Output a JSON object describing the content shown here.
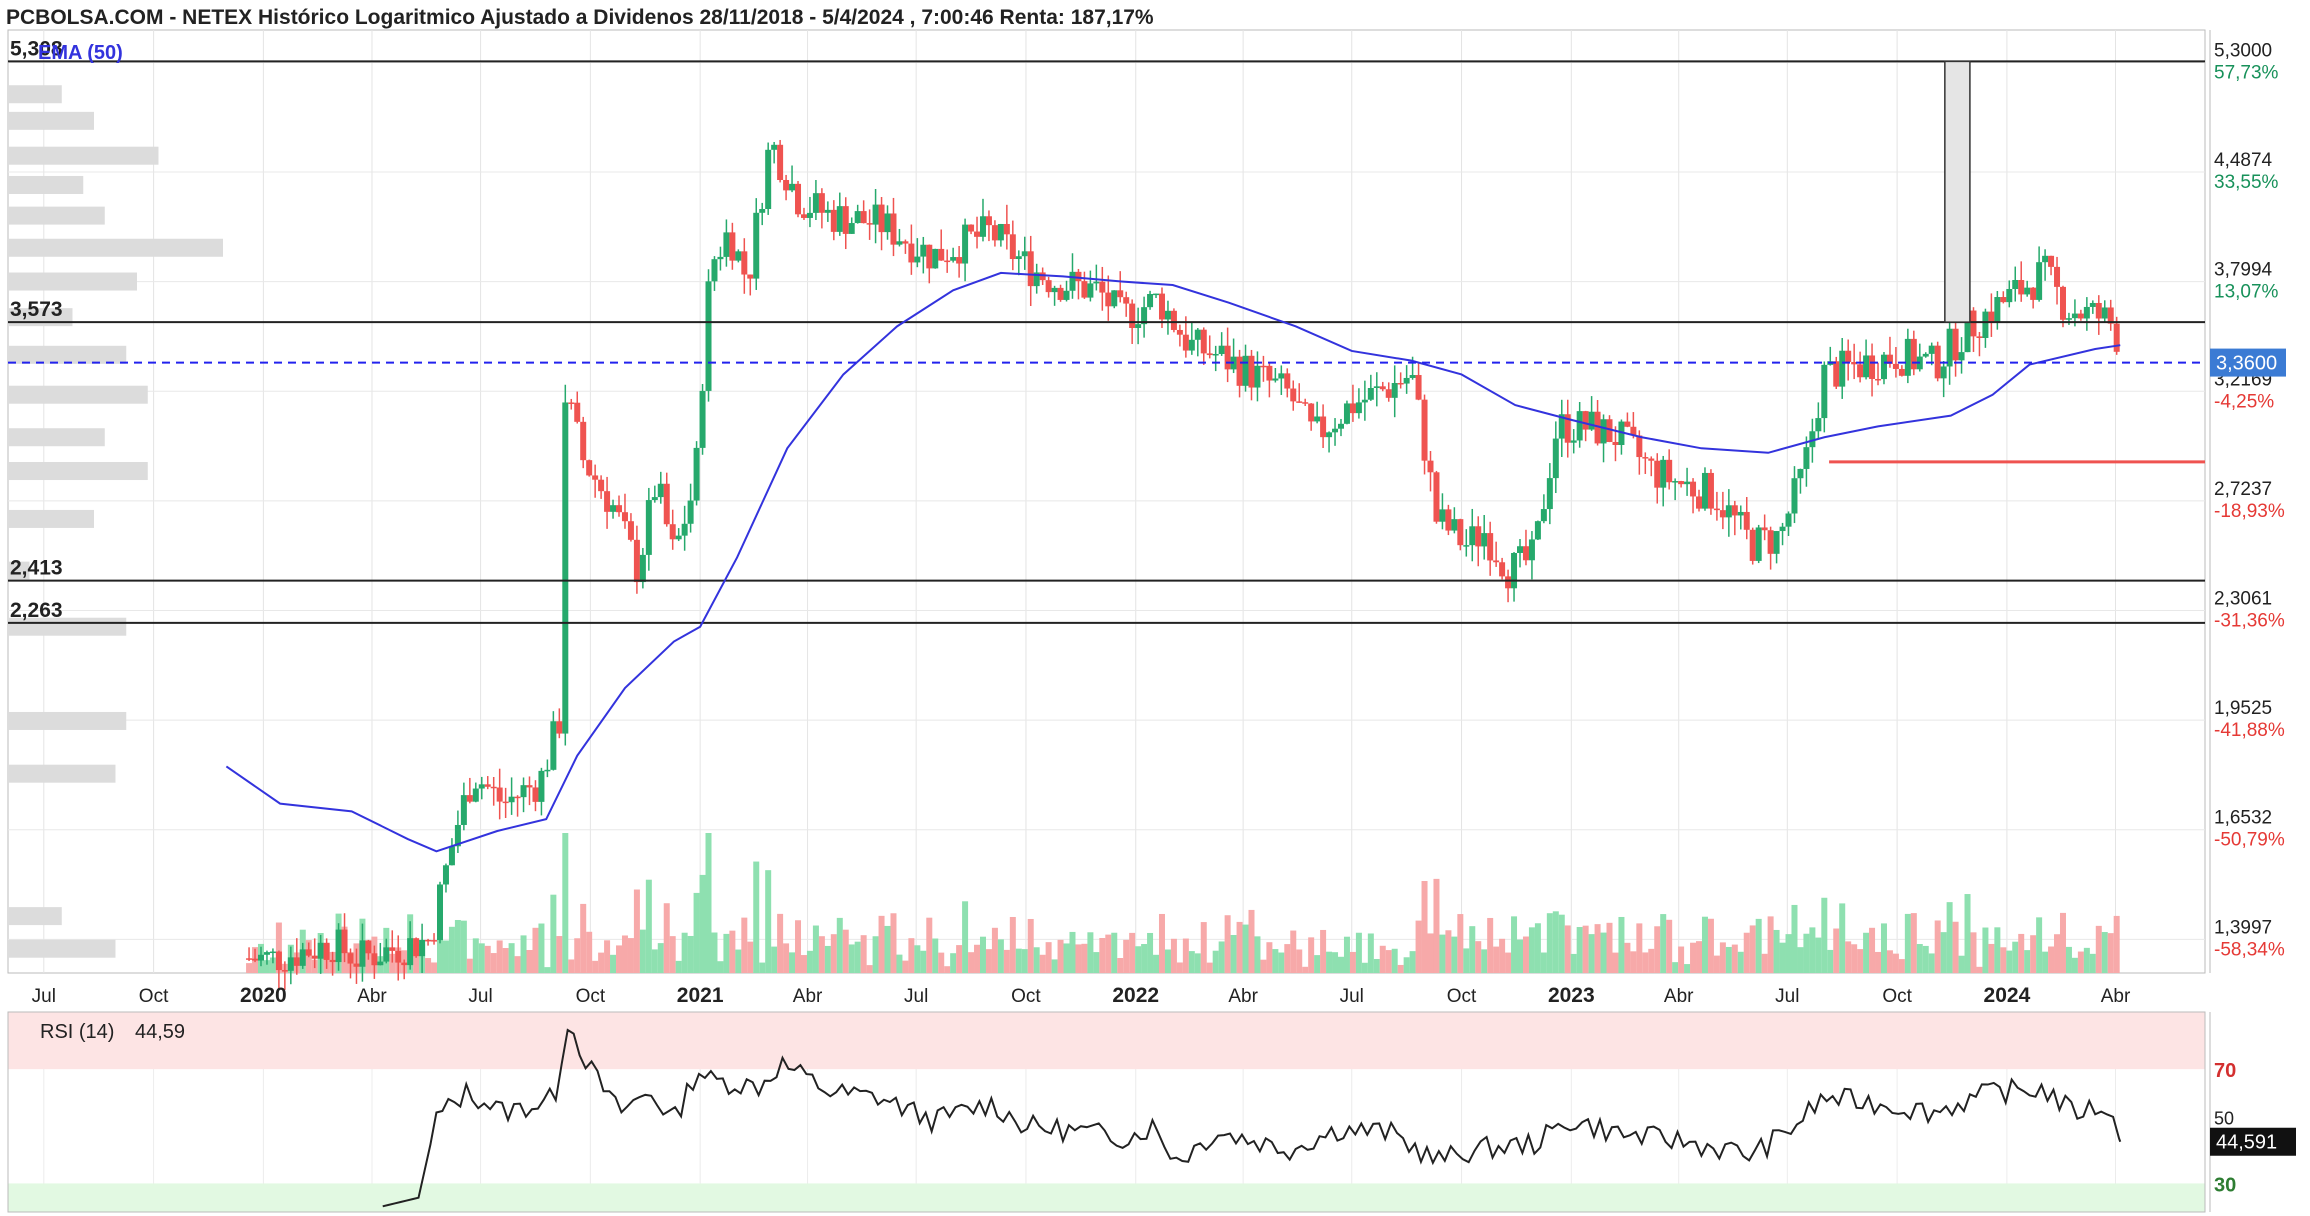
{
  "title": "PCBOLSA.COM - NETEX Histórico Logaritmico Ajustado a Dividenos 28/11/2018 - 5/4/2024 , 7:00:46 Renta: 187,17%",
  "colors": {
    "up": "#26a96c",
    "down": "#ef5350",
    "up_vol": "#8ee0b0",
    "down_vol": "#f7a9a9",
    "ema": "#3333dd",
    "last_price_line": "#2222ee",
    "last_price_badge": "#3b7bd4",
    "pct_pos": "#17915a",
    "pct_neg": "#e53935",
    "rsi_zone_high": "#fde4e4",
    "rsi_zone_low": "#e2f9e2",
    "rsi_line": "#222222"
  },
  "ema_legend": "EMA (50)",
  "rsi_legend": {
    "label": "RSI (14)",
    "value": "44,59"
  },
  "rsi_axis": {
    "high": "70",
    "mid": "50",
    "low": "30",
    "current": "44,591"
  },
  "levels": [
    {
      "label": "5,308",
      "price": 5.308
    },
    {
      "label": "3,573",
      "price": 3.573
    },
    {
      "label": "2,413",
      "price": 2.413
    },
    {
      "label": "2,263",
      "price": 2.263
    }
  ],
  "right_axis": [
    {
      "value": "5,3000",
      "pct": "57,73%",
      "price": 5.3,
      "sign": "pos"
    },
    {
      "value": "4,4874",
      "pct": "33,55%",
      "price": 4.4874,
      "sign": "pos"
    },
    {
      "value": "3,7994",
      "pct": "13,07%",
      "price": 3.7994,
      "sign": "pos"
    },
    {
      "value": "3,2169",
      "pct": "-4,25%",
      "price": 3.2169,
      "sign": "neg"
    },
    {
      "value": "2,7237",
      "pct": "-18,93%",
      "price": 2.7237,
      "sign": "neg"
    },
    {
      "value": "2,3061",
      "pct": "-31,36%",
      "price": 2.3061,
      "sign": "neg"
    },
    {
      "value": "1,9525",
      "pct": "-41,88%",
      "price": 1.9525,
      "sign": "neg"
    },
    {
      "value": "1,6532",
      "pct": "-50,79%",
      "price": 1.6532,
      "sign": "neg"
    },
    {
      "value": "1,3997",
      "pct": "-58,34%",
      "price": 1.3997,
      "sign": "neg"
    }
  ],
  "last_price": {
    "label": "3,3600",
    "price": 3.36
  },
  "red_support_price": 2.89,
  "x_ticks": [
    {
      "label": "Jul",
      "date": "2019-07-01",
      "year": false
    },
    {
      "label": "Oct",
      "date": "2019-10-01",
      "year": false
    },
    {
      "label": "2020",
      "date": "2020-01-01",
      "year": true
    },
    {
      "label": "Abr",
      "date": "2020-04-01",
      "year": false
    },
    {
      "label": "Jul",
      "date": "2020-07-01",
      "year": false
    },
    {
      "label": "Oct",
      "date": "2020-10-01",
      "year": false
    },
    {
      "label": "2021",
      "date": "2021-01-01",
      "year": true
    },
    {
      "label": "Abr",
      "date": "2021-04-01",
      "year": false
    },
    {
      "label": "Jul",
      "date": "2021-07-01",
      "year": false
    },
    {
      "label": "Oct",
      "date": "2021-10-01",
      "year": false
    },
    {
      "label": "2022",
      "date": "2022-01-01",
      "year": true
    },
    {
      "label": "Abr",
      "date": "2022-04-01",
      "year": false
    },
    {
      "label": "Jul",
      "date": "2022-07-01",
      "year": false
    },
    {
      "label": "Oct",
      "date": "2022-10-01",
      "year": false
    },
    {
      "label": "2023",
      "date": "2023-01-01",
      "year": true
    },
    {
      "label": "Abr",
      "date": "2023-04-01",
      "year": false
    },
    {
      "label": "Jul",
      "date": "2023-07-01",
      "year": false
    },
    {
      "label": "Oct",
      "date": "2023-10-01",
      "year": false
    },
    {
      "label": "2024",
      "date": "2024-01-01",
      "year": true
    },
    {
      "label": "Abr",
      "date": "2024-04-01",
      "year": false
    }
  ],
  "chart_data": {
    "type": "candlestick",
    "title": "PCBOLSA.COM - NETEX Histórico Logaritmico Ajustado a Dividenos 28/11/2018 - 5/4/2024 , 7:00:46 Renta: 187,17%",
    "y_scale": "log",
    "ylim": [
      1.33,
      5.5
    ],
    "xlim": [
      "2019-06-01",
      "2024-06-15"
    ],
    "price_anchors": [
      [
        "2019-12-20",
        1.36
      ],
      [
        "2020-01-10",
        1.36
      ],
      [
        "2020-02-28",
        1.39
      ],
      [
        "2020-03-20",
        1.36
      ],
      [
        "2020-05-20",
        1.4
      ],
      [
        "2020-06-10",
        1.65
      ],
      [
        "2020-06-25",
        1.8
      ],
      [
        "2020-07-20",
        1.72
      ],
      [
        "2020-08-20",
        1.78
      ],
      [
        "2020-09-05",
        1.95
      ],
      [
        "2020-09-10",
        3.2
      ],
      [
        "2020-09-25",
        2.9
      ],
      [
        "2020-10-20",
        2.7
      ],
      [
        "2020-11-10",
        2.45
      ],
      [
        "2020-11-25",
        2.8
      ],
      [
        "2020-12-10",
        2.5
      ],
      [
        "2020-12-28",
        2.8
      ],
      [
        "2021-01-10",
        3.9
      ],
      [
        "2021-01-25",
        4.1
      ],
      [
        "2021-02-10",
        3.8
      ],
      [
        "2021-03-01",
        4.7
      ],
      [
        "2021-03-25",
        4.3
      ],
      [
        "2021-04-20",
        4.2
      ],
      [
        "2021-06-01",
        4.15
      ],
      [
        "2021-07-15",
        3.95
      ],
      [
        "2021-09-01",
        4.1
      ],
      [
        "2021-09-30",
        3.9
      ],
      [
        "2021-10-25",
        3.8
      ],
      [
        "2021-11-30",
        3.75
      ],
      [
        "2021-12-20",
        3.6
      ],
      [
        "2022-01-20",
        3.7
      ],
      [
        "2022-02-15",
        3.45
      ],
      [
        "2022-03-10",
        3.4
      ],
      [
        "2022-04-10",
        3.3
      ],
      [
        "2022-05-10",
        3.2
      ],
      [
        "2022-05-30",
        3.0
      ],
      [
        "2022-06-30",
        3.15
      ],
      [
        "2022-07-20",
        3.2
      ],
      [
        "2022-08-20",
        3.3
      ],
      [
        "2022-09-10",
        2.65
      ],
      [
        "2022-10-05",
        2.55
      ],
      [
        "2022-10-20",
        2.6
      ],
      [
        "2022-11-10",
        2.45
      ],
      [
        "2022-12-01",
        2.5
      ],
      [
        "2022-12-20",
        3.05
      ],
      [
        "2023-01-15",
        3.05
      ],
      [
        "2023-02-10",
        3.0
      ],
      [
        "2023-03-10",
        2.85
      ],
      [
        "2023-04-01",
        2.8
      ],
      [
        "2023-05-01",
        2.75
      ],
      [
        "2023-06-01",
        2.55
      ],
      [
        "2023-06-25",
        2.58
      ],
      [
        "2023-07-15",
        2.85
      ],
      [
        "2023-08-01",
        3.3
      ],
      [
        "2023-09-01",
        3.35
      ],
      [
        "2023-10-01",
        3.4
      ],
      [
        "2023-11-01",
        3.35
      ],
      [
        "2023-12-01",
        3.55
      ],
      [
        "2024-01-01",
        3.7
      ],
      [
        "2024-02-01",
        3.85
      ],
      [
        "2024-02-20",
        3.65
      ],
      [
        "2024-03-20",
        3.6
      ],
      [
        "2024-04-01",
        3.55
      ],
      [
        "2024-04-05",
        3.36
      ]
    ],
    "ema_50": [
      [
        "2019-12-01",
        1.82
      ],
      [
        "2020-01-15",
        1.72
      ],
      [
        "2020-03-15",
        1.7
      ],
      [
        "2020-05-01",
        1.63
      ],
      [
        "2020-05-25",
        1.6
      ],
      [
        "2020-07-15",
        1.65
      ],
      [
        "2020-08-25",
        1.68
      ],
      [
        "2020-09-20",
        1.85
      ],
      [
        "2020-10-30",
        2.05
      ],
      [
        "2020-12-10",
        2.2
      ],
      [
        "2021-01-01",
        2.25
      ],
      [
        "2021-02-01",
        2.5
      ],
      [
        "2021-03-15",
        2.95
      ],
      [
        "2021-05-01",
        3.3
      ],
      [
        "2021-06-15",
        3.55
      ],
      [
        "2021-08-01",
        3.75
      ],
      [
        "2021-09-10",
        3.85
      ],
      [
        "2021-11-01",
        3.83
      ],
      [
        "2021-12-20",
        3.8
      ],
      [
        "2022-02-01",
        3.78
      ],
      [
        "2022-03-20",
        3.68
      ],
      [
        "2022-05-15",
        3.55
      ],
      [
        "2022-07-01",
        3.42
      ],
      [
        "2022-08-20",
        3.37
      ],
      [
        "2022-10-01",
        3.3
      ],
      [
        "2022-11-15",
        3.15
      ],
      [
        "2023-01-01",
        3.08
      ],
      [
        "2023-03-01",
        3.0
      ],
      [
        "2023-04-20",
        2.95
      ],
      [
        "2023-06-15",
        2.93
      ],
      [
        "2023-08-01",
        3.0
      ],
      [
        "2023-09-15",
        3.05
      ],
      [
        "2023-11-15",
        3.1
      ],
      [
        "2023-12-20",
        3.2
      ],
      [
        "2024-01-20",
        3.35
      ],
      [
        "2024-03-15",
        3.43
      ],
      [
        "2024-04-05",
        3.45
      ]
    ],
    "volume_profile_prices": [
      5.05,
      4.85,
      4.6,
      4.4,
      4.2,
      4.0,
      3.8,
      3.6,
      3.4,
      3.2,
      3.0,
      2.85,
      2.65,
      2.45,
      2.25,
      1.95,
      1.8,
      1.45,
      1.38
    ],
    "volume_profile_values": [
      0.25,
      0.4,
      0.7,
      0.35,
      0.45,
      1.0,
      0.6,
      0.3,
      0.55,
      0.65,
      0.45,
      0.65,
      0.4,
      0.1,
      0.55,
      0.55,
      0.5,
      0.25,
      0.5
    ],
    "rsi_14": [
      [
        "2020-04-10",
        22
      ],
      [
        "2020-05-10",
        25
      ],
      [
        "2020-05-25",
        53
      ],
      [
        "2020-06-20",
        62
      ],
      [
        "2020-07-20",
        55
      ],
      [
        "2020-08-20",
        58
      ],
      [
        "2020-09-01",
        60
      ],
      [
        "2020-09-12",
        87
      ],
      [
        "2020-10-01",
        70
      ],
      [
        "2020-10-25",
        55
      ],
      [
        "2020-11-20",
        62
      ],
      [
        "2020-12-10",
        52
      ],
      [
        "2020-12-30",
        70
      ],
      [
        "2021-01-10",
        66
      ],
      [
        "2021-02-20",
        64
      ],
      [
        "2021-03-10",
        72
      ],
      [
        "2021-04-20",
        62
      ],
      [
        "2021-06-01",
        60
      ],
      [
        "2021-07-15",
        52
      ],
      [
        "2021-09-01",
        58
      ],
      [
        "2021-10-01",
        50
      ],
      [
        "2021-11-20",
        48
      ],
      [
        "2021-12-25",
        46
      ],
      [
        "2022-01-15",
        50
      ],
      [
        "2022-02-05",
        38
      ],
      [
        "2022-03-10",
        48
      ],
      [
        "2022-04-10",
        45
      ],
      [
        "2022-05-10",
        42
      ],
      [
        "2022-06-20",
        49
      ],
      [
        "2022-08-01",
        48
      ],
      [
        "2022-09-10",
        38
      ],
      [
        "2022-10-15",
        42
      ],
      [
        "2022-12-01",
        44
      ],
      [
        "2023-01-01",
        52
      ],
      [
        "2023-02-15",
        47
      ],
      [
        "2023-04-01",
        45
      ],
      [
        "2023-06-01",
        40
      ],
      [
        "2023-07-01",
        48
      ],
      [
        "2023-08-01",
        60
      ],
      [
        "2023-09-15",
        58
      ],
      [
        "2023-11-01",
        55
      ],
      [
        "2023-12-20",
        62
      ],
      [
        "2024-02-01",
        63
      ],
      [
        "2024-02-25",
        55
      ],
      [
        "2024-03-25",
        57
      ],
      [
        "2024-04-05",
        44.59
      ]
    ],
    "rsi_ylim": [
      20,
      90
    ],
    "rsi_levels": [
      70,
      50,
      30
    ]
  }
}
